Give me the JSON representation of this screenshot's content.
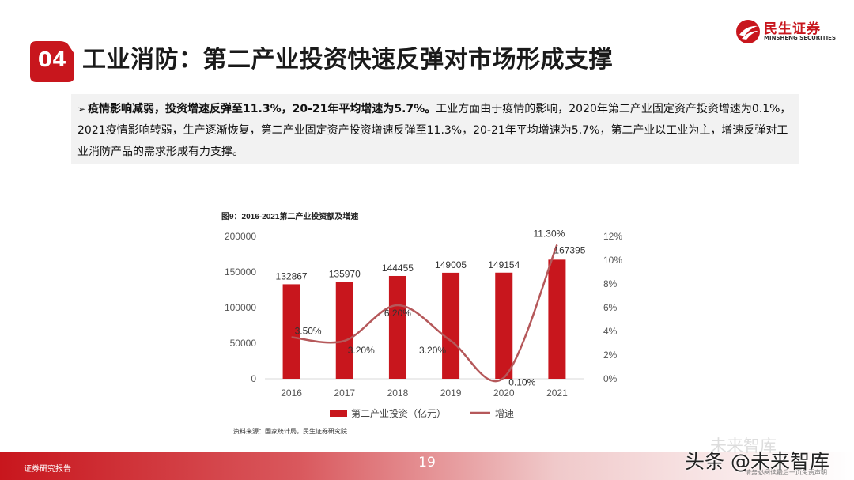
{
  "brand": {
    "name_cn": "民生证券",
    "name_en": "MINSHENG SECURITIES",
    "logo_icon": "minsheng-swoosh-logo",
    "accent_color": "#c8161d"
  },
  "header": {
    "section_number": "04",
    "title": "工业消防：第二产业投资快速反弹对市场形成支撑"
  },
  "summary": {
    "bullet": "➢",
    "bold_text": "疫情影响减弱，投资增速反弹至11.3%，20-21年平均增速为5.7%。",
    "body_text": "工业方面由于疫情的影响，2020年第二产业固定资产投资增速为0.1%，2021疫情影响转弱，生产逐渐恢复，第二产业固定资产投资增速反弹至11.3%，20-21年平均增速为5.7%，第二产业以工业为主，增速反弹对工业消防产品的需求形成有力支撑。"
  },
  "chart_data": {
    "type": "bar",
    "title": "图9：2016-2021第二产业投资额及增速",
    "categories": [
      "2016",
      "2017",
      "2018",
      "2019",
      "2020",
      "2021"
    ],
    "series": [
      {
        "name": "第二产业投资（亿元）",
        "type": "bar",
        "axis": "left",
        "color": "#c8161d",
        "values": [
          132867,
          135970,
          144455,
          149005,
          149154,
          167395
        ],
        "labels": [
          "132867",
          "135970",
          "144455",
          "149005",
          "149154",
          "167395"
        ]
      },
      {
        "name": "增速",
        "type": "line",
        "axis": "right",
        "color": "#b5585a",
        "values": [
          3.5,
          3.2,
          6.2,
          3.2,
          0.1,
          11.3
        ],
        "labels": [
          "3.50%",
          "3.20%",
          "6.20%",
          "3.20%",
          "0.10%",
          "11.30%"
        ]
      }
    ],
    "y_left": {
      "min": 0,
      "max": 200000,
      "ticks": [
        "0",
        "50000",
        "100000",
        "150000",
        "200000"
      ]
    },
    "y_right": {
      "min": 0,
      "max": 12,
      "ticks": [
        "0%",
        "2%",
        "4%",
        "6%",
        "8%",
        "10%",
        "12%"
      ]
    },
    "legend_position": "bottom",
    "grid": false,
    "source": "资料来源：国家统计局，民生证券研究院"
  },
  "footer": {
    "left_text": "证券研究报告",
    "page_number": "19"
  },
  "watermark": {
    "faded": "未来智库",
    "main": "头条 @未来智库",
    "sub": "请务必阅读最后一页免责声明"
  }
}
